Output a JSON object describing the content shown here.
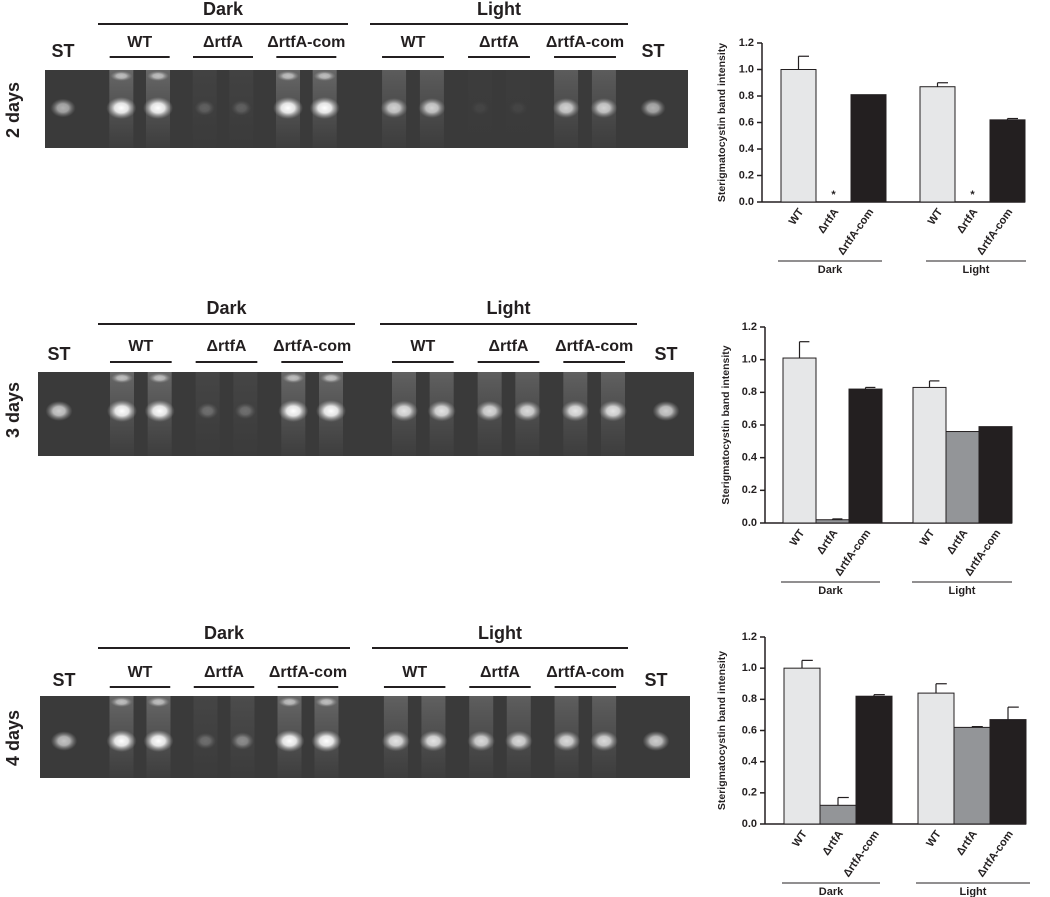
{
  "gels": [
    {
      "days": "2 days",
      "conditions": [
        "Dark",
        "Light"
      ],
      "strains": [
        "WT",
        "ΔrtfA",
        "ΔrtfA-com"
      ],
      "standard": "ST"
    },
    {
      "days": "3 days",
      "conditions": [
        "Dark",
        "Light"
      ],
      "strains": [
        "WT",
        "ΔrtfA",
        "ΔrtfA-com"
      ],
      "standard": "ST"
    },
    {
      "days": "4 days",
      "conditions": [
        "Dark",
        "Light"
      ],
      "strains": [
        "WT",
        "ΔrtfA",
        "ΔrtfA-com"
      ],
      "standard": "ST"
    }
  ],
  "chart_data": [
    {
      "type": "bar",
      "ylabel": "Sterigmatocystin band intensity",
      "groups": [
        "Dark",
        "Light"
      ],
      "ylim": [
        0,
        1.2
      ],
      "yticks": [
        {
          "value": 0,
          "label": "0.0"
        },
        0.2,
        0.4,
        0.6,
        0.8,
        {
          "value": 1,
          "label": "1.0"
        },
        1.2
      ],
      "series": [
        {
          "name": "WT",
          "color": "#e6e7e8",
          "values": [
            1.0,
            0.87
          ],
          "errors": [
            0.1,
            0.03
          ]
        },
        {
          "name": "ΔrtfA",
          "color": "#939598",
          "values": [
            0,
            0
          ],
          "errors": [
            0,
            0
          ],
          "annotations": [
            "*",
            "*"
          ]
        },
        {
          "name": "ΔrtfA-com",
          "color": "#231f20",
          "values": [
            0.81,
            0.62
          ],
          "errors": [
            0,
            0.01
          ]
        }
      ]
    },
    {
      "type": "bar",
      "ylabel": "Sterigmatocystin band intensity",
      "groups": [
        "Dark",
        "Light"
      ],
      "ylim": [
        0,
        1.2
      ],
      "yticks": [
        {
          "value": 0,
          "label": "0.0"
        },
        0.2,
        0.4,
        0.6,
        0.8,
        {
          "value": 1,
          "label": "1.0"
        },
        1.2
      ],
      "series": [
        {
          "name": "WT",
          "color": "#e6e7e8",
          "values": [
            1.01,
            0.83
          ],
          "errors": [
            0.1,
            0.04
          ]
        },
        {
          "name": "ΔrtfA",
          "color": "#939598",
          "values": [
            0.02,
            0.56
          ],
          "errors": [
            0.005,
            0
          ]
        },
        {
          "name": "ΔrtfA-com",
          "color": "#231f20",
          "values": [
            0.82,
            0.59
          ],
          "errors": [
            0.01,
            0
          ]
        }
      ]
    },
    {
      "type": "bar",
      "ylabel": "Sterigmatocystin band intensity",
      "groups": [
        "Dark",
        "Light"
      ],
      "ylim": [
        0,
        1.2
      ],
      "yticks": [
        {
          "value": 0,
          "label": "0.0"
        },
        0.2,
        0.4,
        0.6,
        0.8,
        {
          "value": 1,
          "label": "1.0"
        },
        1.2
      ],
      "series": [
        {
          "name": "WT",
          "color": "#e6e7e8",
          "values": [
            1.0,
            0.84
          ],
          "errors": [
            0.05,
            0.06
          ]
        },
        {
          "name": "ΔrtfA",
          "color": "#939598",
          "values": [
            0.12,
            0.62
          ],
          "errors": [
            0.05,
            0.005
          ]
        },
        {
          "name": "ΔrtfA-com",
          "color": "#231f20",
          "values": [
            0.82,
            0.67
          ],
          "errors": [
            0.01,
            0.08
          ]
        }
      ]
    }
  ]
}
